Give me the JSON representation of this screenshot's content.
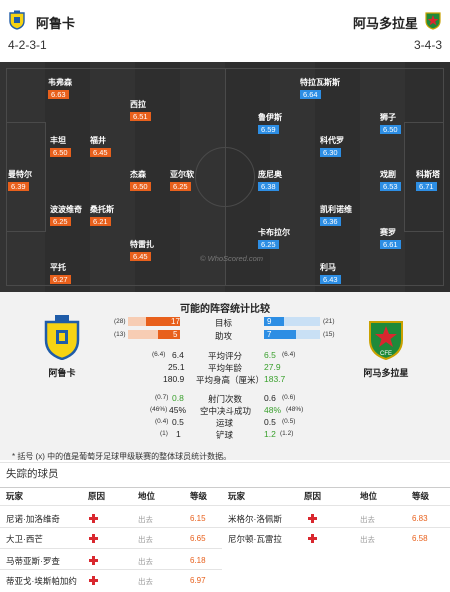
{
  "home": {
    "name": "阿鲁卡",
    "formation": "4-2-3-1"
  },
  "away": {
    "name": "阿马多拉星",
    "formation": "3-4-3"
  },
  "pitch": {
    "home_players": [
      {
        "name": "韦弗森",
        "rating": "6.63"
      },
      {
        "name": "西拉",
        "rating": "6.51"
      },
      {
        "name": "丰坦",
        "rating": "6.50"
      },
      {
        "name": "福井",
        "rating": "6.45"
      },
      {
        "name": "曼特尔",
        "rating": "6.39"
      },
      {
        "name": "杰森",
        "rating": "6.50"
      },
      {
        "name": "亚尔软",
        "rating": "6.25"
      },
      {
        "name": "波波维奇",
        "rating": "6.25"
      },
      {
        "name": "桑托斯",
        "rating": "6.21"
      },
      {
        "name": "特雷扎",
        "rating": "6.45"
      },
      {
        "name": "平托",
        "rating": "6.27"
      }
    ],
    "away_players": [
      {
        "name": "特拉瓦斯斯",
        "rating": "6.64"
      },
      {
        "name": "鲁伊斯",
        "rating": "6.59"
      },
      {
        "name": "狮子",
        "rating": "6.50"
      },
      {
        "name": "科代罗",
        "rating": "6.30"
      },
      {
        "name": "庞尼奥",
        "rating": "6.38"
      },
      {
        "name": "戏剧",
        "rating": "6.53"
      },
      {
        "name": "科斯塔",
        "rating": "6.71"
      },
      {
        "name": "凯利诺维",
        "rating": "6.36"
      },
      {
        "name": "卡布拉尔",
        "rating": "6.25"
      },
      {
        "name": "赛罗",
        "rating": "6.61"
      },
      {
        "name": "利马",
        "rating": "6.43"
      }
    ],
    "watermark": "© WhoScored.com"
  },
  "comparison": {
    "title": "可能的阵容统计比较",
    "goals": {
      "label": "目标",
      "home": "17",
      "home_rank": "(28)",
      "away": "9",
      "away_rank": "(21)",
      "home_fill": 0.65,
      "away_fill": 0.35
    },
    "assists": {
      "label": "助攻",
      "home": "5",
      "home_rank": "(13)",
      "away": "7",
      "away_rank": "(15)",
      "home_fill": 0.42,
      "away_fill": 0.58
    },
    "stats": [
      {
        "label": "平均评分",
        "home": "6.4",
        "home_pre": "(6.4)",
        "away": "6.5",
        "away_post": "(6.4)",
        "green": "away"
      },
      {
        "label": "平均年龄",
        "home": "25.1",
        "home_pre": "",
        "away": "27.9",
        "away_post": "",
        "green": "away"
      },
      {
        "label": "平均身高（厘米）",
        "home": "180.9",
        "home_pre": "",
        "away": "183.7",
        "away_post": "",
        "green": "away"
      },
      {
        "label": "射门次数",
        "home": "0.8",
        "home_pre": "(0.7)",
        "away": "0.6",
        "away_post": "(0.6)",
        "green": "home"
      },
      {
        "label": "空中决斗成功",
        "home": "45%",
        "home_pre": "(46%)",
        "away": "48%",
        "away_post": "(48%)",
        "green": "away"
      },
      {
        "label": "运球",
        "home": "0.5",
        "home_pre": "(0.4)",
        "away": "0.5",
        "away_post": "(0.5)",
        "green": "none"
      },
      {
        "label": "铲球",
        "home": "1",
        "home_pre": "(1)",
        "away": "1.2",
        "away_post": "(1.2)",
        "green": "away"
      }
    ],
    "note": "* 括号 (x) 中的值是葡萄牙足球甲级联赛的整体球员统计数据。"
  },
  "missing": {
    "title": "失踪的球员",
    "headers": {
      "player": "玩家",
      "reason": "原因",
      "status": "地位",
      "rating": "等级"
    },
    "home": [
      {
        "name": "尼诺·加洛维奇",
        "status": "出去",
        "rating": "6.15"
      },
      {
        "name": "大卫·西芒",
        "status": "出去",
        "rating": "6.65"
      },
      {
        "name": "马蒂亚斯·罗查",
        "status": "出去",
        "rating": "6.18"
      },
      {
        "name": "蒂亚戈·埃斯帕加约",
        "status": "出去",
        "rating": "6.97"
      }
    ],
    "away": [
      {
        "name": "米格尔·洛佩斯",
        "status": "出去",
        "rating": "6.83"
      },
      {
        "name": "尼尔顿·瓦雷拉",
        "status": "出去",
        "rating": "6.58"
      }
    ]
  },
  "colors": {
    "home_bar": "#e8601c",
    "away_bar": "#2d8ee4",
    "green": "#39a02c"
  }
}
